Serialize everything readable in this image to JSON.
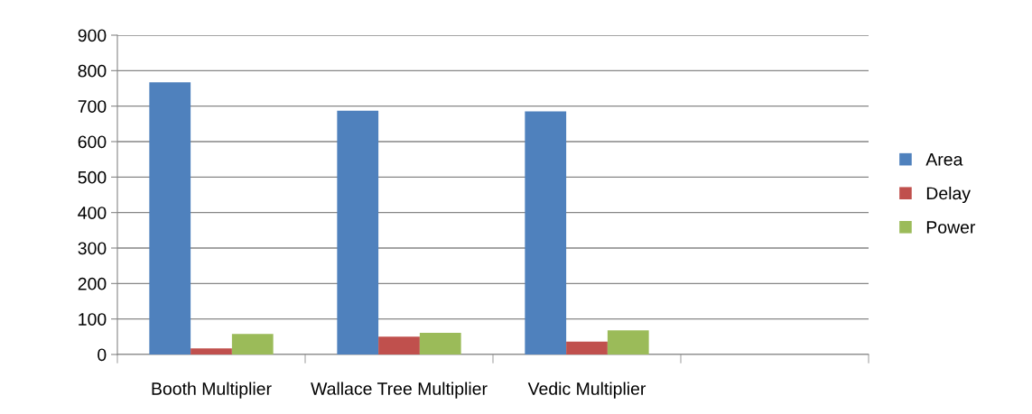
{
  "chart_data": {
    "type": "bar",
    "categories": [
      "Booth Multiplier",
      "Wallace Tree Multiplier",
      "Vedic Multiplier",
      null
    ],
    "series": [
      {
        "name": "Area",
        "color": "#4f81bd",
        "values": [
          767,
          687,
          685,
          null
        ]
      },
      {
        "name": "Delay",
        "color": "#c0504d",
        "values": [
          17,
          50,
          36,
          null
        ]
      },
      {
        "name": "Power",
        "color": "#9bbb59",
        "values": [
          58,
          61,
          68,
          null
        ]
      }
    ],
    "ylim": [
      0,
      900
    ],
    "yticks": [
      0,
      100,
      200,
      300,
      400,
      500,
      600,
      700,
      800,
      900
    ],
    "grid": "y",
    "legend": "right"
  }
}
